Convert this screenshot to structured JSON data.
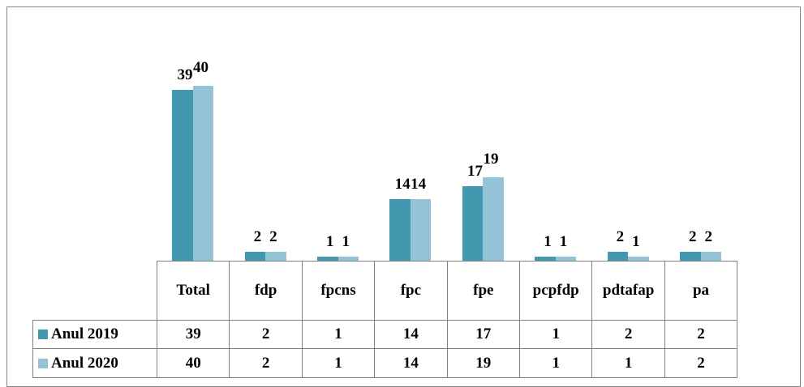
{
  "chart_data": {
    "type": "bar",
    "categories": [
      "Total",
      "fdp",
      "fpcns",
      "fpc",
      "fpe",
      "pcpfdp",
      "pdtafap",
      "pa"
    ],
    "series": [
      {
        "name": "Anul 2019",
        "color": "#4198af",
        "values": [
          39,
          2,
          1,
          14,
          17,
          1,
          2,
          2
        ]
      },
      {
        "name": "Anul 2020",
        "color": "#93c3d5",
        "values": [
          40,
          2,
          1,
          14,
          19,
          1,
          1,
          2
        ]
      }
    ]
  }
}
